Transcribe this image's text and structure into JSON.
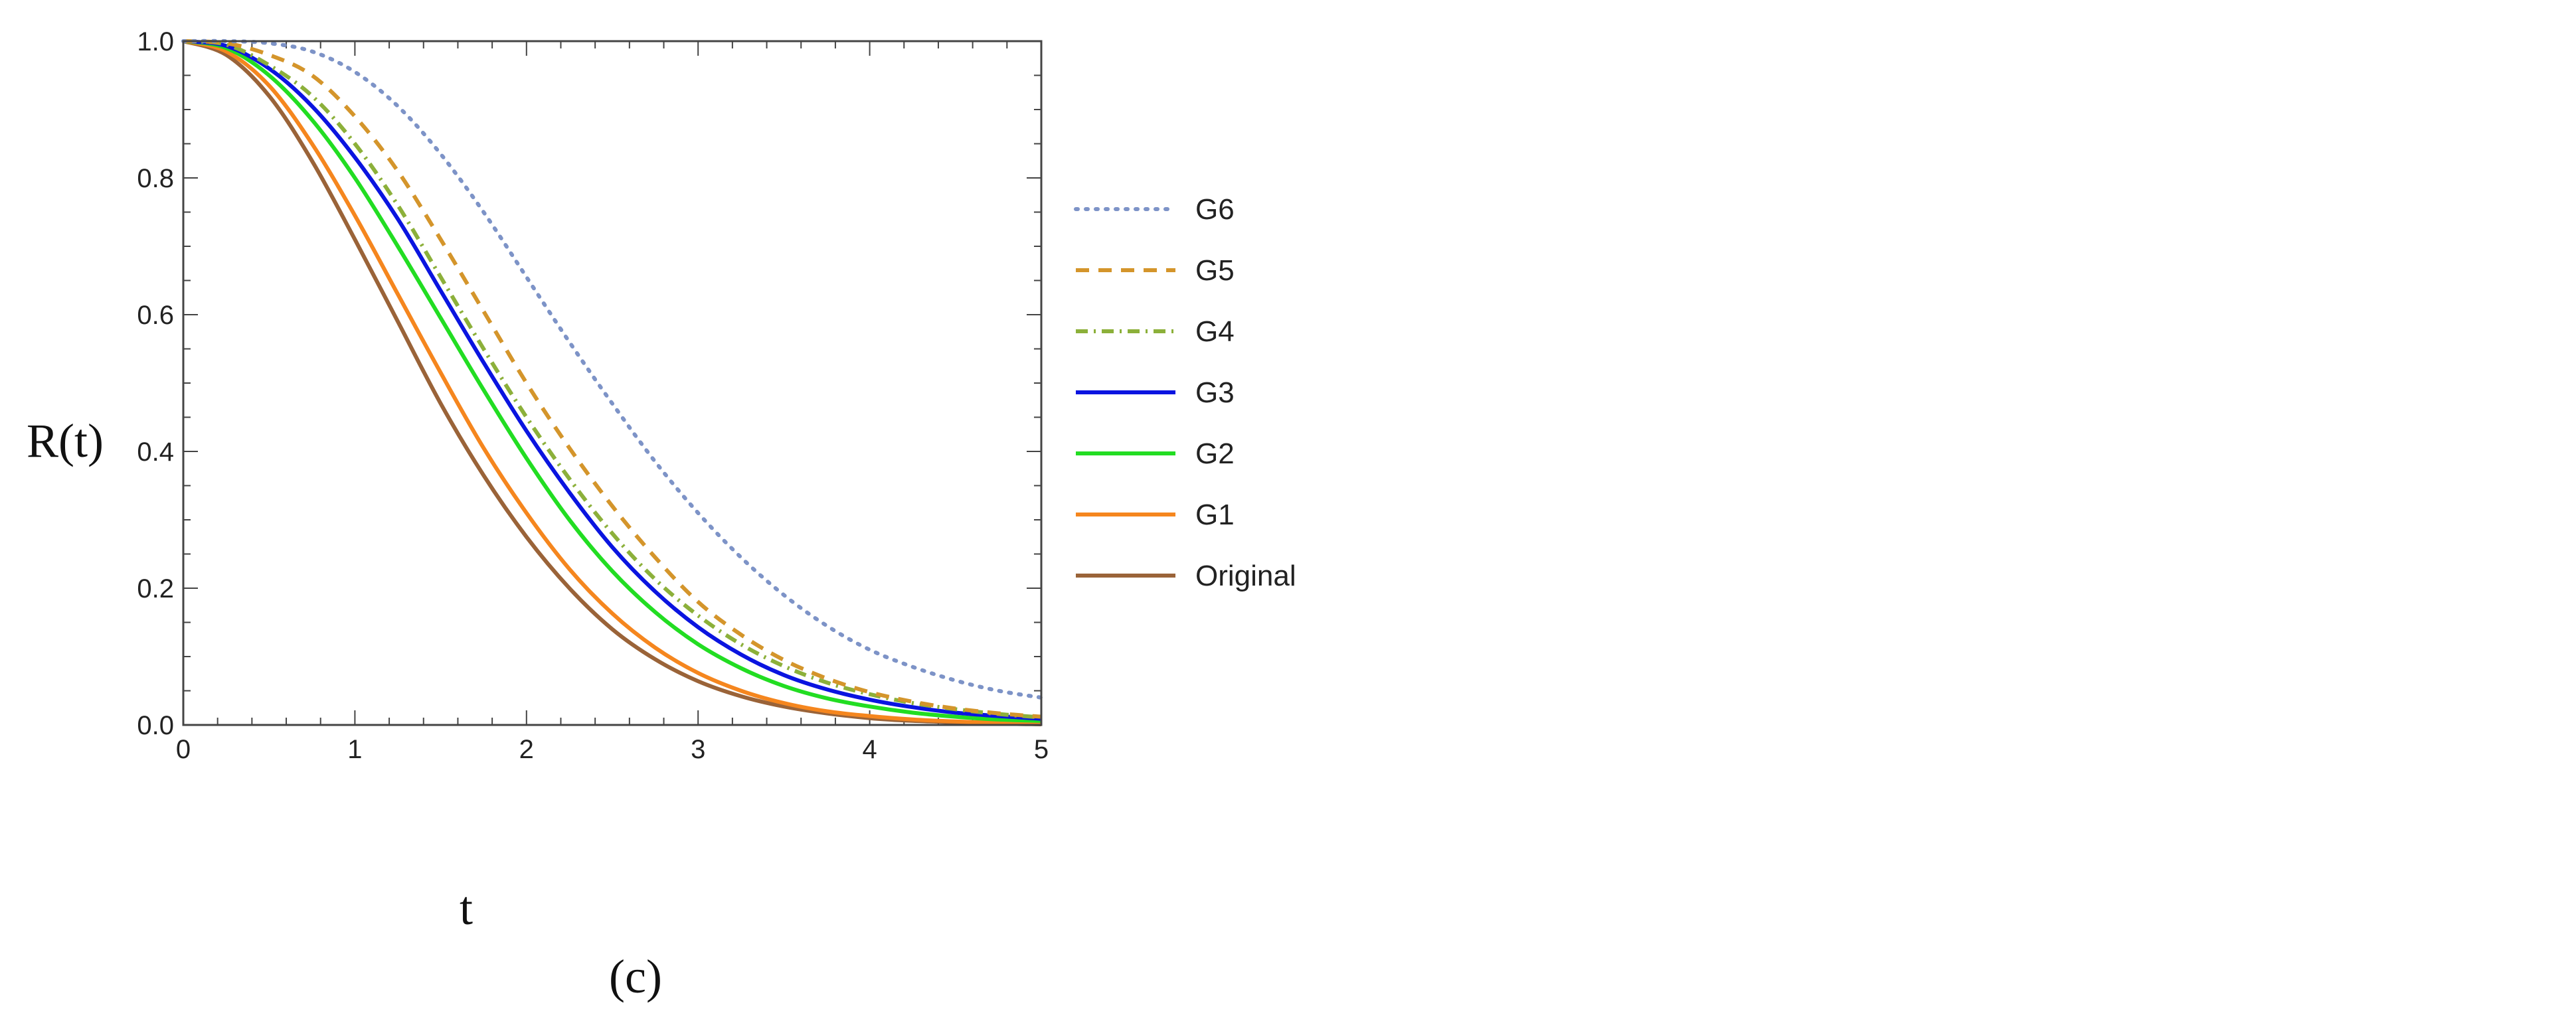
{
  "chart_data": {
    "type": "line",
    "xlabel": "t",
    "ylabel": "R(t)",
    "panel_label": "(c)",
    "xlim": [
      0,
      5
    ],
    "ylim": [
      0,
      1
    ],
    "x_ticks": [
      0,
      1,
      2,
      3,
      4,
      5
    ],
    "x_tick_labels": [
      "0",
      "1",
      "2",
      "3",
      "4",
      "5"
    ],
    "y_ticks": [
      0,
      0.2,
      0.4,
      0.6,
      0.8,
      1.0
    ],
    "y_tick_labels": [
      "0.0",
      "0.2",
      "0.4",
      "0.6",
      "0.8",
      "1.0"
    ],
    "grid": false,
    "legend_position": "right",
    "x": [
      0,
      0.25,
      0.5,
      0.75,
      1.0,
      1.25,
      1.5,
      1.75,
      2.0,
      2.25,
      2.5,
      2.75,
      3.0,
      3.25,
      3.5,
      3.75,
      4.0,
      4.25,
      4.5,
      4.75,
      5.0
    ],
    "series": [
      {
        "name": "G6",
        "color": "#7d93c7",
        "dash": "dotted",
        "values": [
          1.0,
          1.0,
          0.997,
          0.985,
          0.955,
          0.905,
          0.835,
          0.75,
          0.655,
          0.56,
          0.47,
          0.385,
          0.31,
          0.245,
          0.19,
          0.145,
          0.11,
          0.085,
          0.065,
          0.05,
          0.04
        ]
      },
      {
        "name": "G5",
        "color": "#d4952b",
        "dash": "dashed",
        "values": [
          1.0,
          0.997,
          0.98,
          0.95,
          0.89,
          0.81,
          0.71,
          0.605,
          0.5,
          0.405,
          0.32,
          0.245,
          0.18,
          0.132,
          0.095,
          0.068,
          0.048,
          0.034,
          0.024,
          0.017,
          0.012
        ]
      },
      {
        "name": "G4",
        "color": "#8cb03a",
        "dash": "dashdot",
        "values": [
          1.0,
          0.995,
          0.965,
          0.92,
          0.85,
          0.76,
          0.655,
          0.55,
          0.45,
          0.36,
          0.28,
          0.213,
          0.16,
          0.118,
          0.086,
          0.062,
          0.045,
          0.032,
          0.023,
          0.016,
          0.011
        ]
      },
      {
        "name": "G3",
        "color": "#0a14e0",
        "dash": "solid",
        "values": [
          1.0,
          0.993,
          0.96,
          0.905,
          0.83,
          0.74,
          0.635,
          0.53,
          0.43,
          0.34,
          0.26,
          0.195,
          0.143,
          0.103,
          0.073,
          0.052,
          0.037,
          0.026,
          0.018,
          0.013,
          0.009
        ]
      },
      {
        "name": "G2",
        "color": "#22dd22",
        "dash": "solid",
        "values": [
          1.0,
          0.99,
          0.95,
          0.885,
          0.8,
          0.7,
          0.595,
          0.49,
          0.39,
          0.3,
          0.225,
          0.165,
          0.118,
          0.083,
          0.057,
          0.039,
          0.027,
          0.018,
          0.012,
          0.008,
          0.006
        ]
      },
      {
        "name": "G1",
        "color": "#f5861e",
        "dash": "solid",
        "values": [
          1.0,
          0.985,
          0.935,
          0.85,
          0.745,
          0.63,
          0.515,
          0.405,
          0.31,
          0.228,
          0.163,
          0.113,
          0.076,
          0.05,
          0.032,
          0.02,
          0.013,
          0.008,
          0.005,
          0.003,
          0.002
        ]
      },
      {
        "name": "Original",
        "color": "#9a6338",
        "dash": "solid",
        "values": [
          1.0,
          0.98,
          0.92,
          0.825,
          0.71,
          0.59,
          0.47,
          0.365,
          0.275,
          0.2,
          0.14,
          0.096,
          0.064,
          0.042,
          0.027,
          0.017,
          0.01,
          0.006,
          0.004,
          0.002,
          0.001
        ]
      }
    ]
  }
}
